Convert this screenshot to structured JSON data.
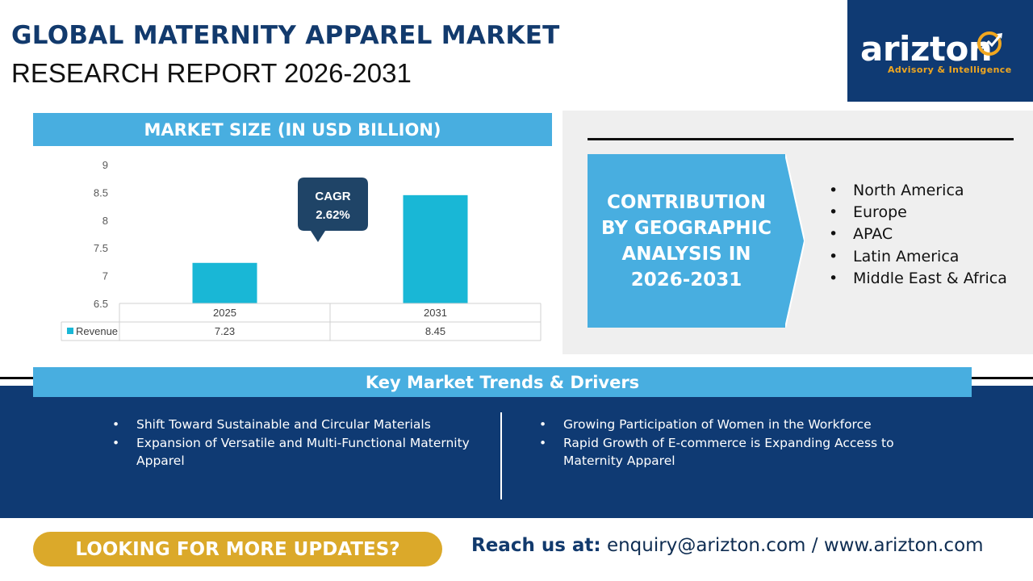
{
  "header": {
    "title_line1": "GLOBAL MATERNITY APPAREL MARKET",
    "title_line2": "RESEARCH REPORT 2026-2031"
  },
  "logo": {
    "wordmark": "arizton",
    "tagline": "Advisory & Intelligence",
    "icon": "rising-arrow-target-icon",
    "bg_color": "#0f3a73",
    "accent_color": "#f0a720"
  },
  "chart_data": {
    "type": "bar",
    "title": "MARKET SIZE (IN USD BILLION)",
    "categories": [
      "2025",
      "2031"
    ],
    "series": [
      {
        "name": "Revenue",
        "values": [
          7.23,
          8.45
        ],
        "data_labels": [
          "7.23",
          "8.45"
        ],
        "color": "#19b7d6"
      }
    ],
    "ylim": [
      6.5,
      9
    ],
    "yticks": [
      "6.5",
      "7",
      "7.5",
      "8",
      "8.5",
      "9"
    ],
    "ytick_values": [
      6.5,
      7,
      7.5,
      8,
      8.5,
      9
    ],
    "grid": false,
    "legend": "data-table",
    "annotation": {
      "label": "CAGR",
      "value": "2.62%"
    },
    "xlabel": "",
    "ylabel": ""
  },
  "geo": {
    "box_text": "CONTRIBUTION BY GEOGRAPHIC ANALYSIS IN 2026-2031",
    "regions": [
      "North America",
      "Europe",
      "APAC",
      "Latin America",
      "Middle East & Africa"
    ],
    "bullet": "•"
  },
  "trends": {
    "title": "Key Market Trends & Drivers",
    "bullet": "•",
    "left": [
      "Shift Toward Sustainable and Circular Materials",
      "Expansion of Versatile and Multi-Functional Maternity Apparel"
    ],
    "right": [
      "Growing Participation of Women in the Workforce",
      "Rapid Growth of E-commerce is Expanding Access to Maternity Apparel"
    ]
  },
  "footer": {
    "cta_label": "LOOKING FOR MORE UPDATES?",
    "reach_label": "Reach us at:",
    "email": "enquiry@arizton.com",
    "separator": "/",
    "website": "www.arizton.com"
  },
  "colors": {
    "header_blue": "#48aee0",
    "navy": "#0f3a73",
    "gold": "#dba92a",
    "bar": "#19b7d6",
    "callout": "#1f4467",
    "panel_gray": "#efefef"
  }
}
